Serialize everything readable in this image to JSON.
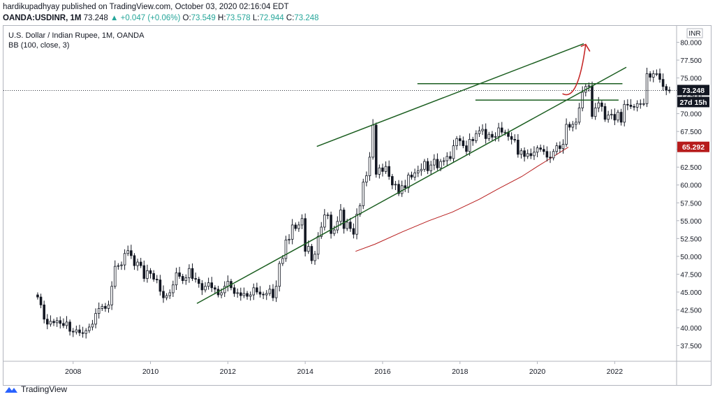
{
  "header": {
    "author": "hardikupadhyay",
    "published_text": "published on TradingView.com, October 03, 2020 02:16:04 EDT",
    "symbol": "OANDA:USDINR, 1M",
    "last": "73.248",
    "change": "▲ +0.047 (+0.06%)",
    "o_label": "O:",
    "o_value": "73.549",
    "h_label": "H:",
    "h_value": "73.578",
    "l_label": "L:",
    "l_value": "72.944",
    "c_label": "C:",
    "c_value": "73.248"
  },
  "legend": {
    "title": "U.S. Dollar / Indian Rupee, 1M, OANDA",
    "indicator": "BB (100, close, 3)"
  },
  "footer": {
    "brand": "TradingView"
  },
  "chart_data": {
    "type": "candlestick",
    "currency": "INR",
    "x_ticks": [
      "2008",
      "2010",
      "2012",
      "2014",
      "2016",
      "2018",
      "2020",
      "2022"
    ],
    "y_ticks": [
      "37.500",
      "40.000",
      "42.500",
      "45.000",
      "47.500",
      "50.000",
      "52.500",
      "55.000",
      "57.500",
      "60.000",
      "62.500",
      "65.000",
      "67.500",
      "70.000",
      "72.500",
      "75.000",
      "77.500",
      "80.000"
    ],
    "ylim": [
      35.3,
      82.3
    ],
    "xlim": [
      2006.2,
      2023.6
    ],
    "last_price_label": "73.248",
    "countdown_label": "27d 15h",
    "bb_value_label": "65.292",
    "colors": {
      "up": "#26a69a",
      "down": "#131722",
      "trend": "#1b5e20",
      "bb": "#b71c1c",
      "arrow": "#c62828",
      "price_badge": "#131722",
      "bb_badge": "#b71c1c"
    },
    "closes": [
      44.3,
      43.2,
      41.2,
      40.5,
      40.9,
      40.7,
      41.0,
      40.6,
      40.3,
      40.8,
      39.5,
      39.4,
      39.7,
      39.3,
      39.2,
      39.6,
      40.1,
      40.5,
      42.0,
      42.7,
      43.0,
      42.7,
      43.2,
      45.8,
      48.6,
      48.7,
      48.8,
      50.4,
      50.8,
      50.1,
      48.7,
      49.2,
      48.7,
      46.9,
      48.0,
      47.6,
      46.8,
      46.7,
      45.1,
      44.2,
      44.5,
      44.9,
      46.0,
      47.7,
      47.2,
      46.6,
      47.0,
      48.3,
      46.9,
      46.8,
      46.2,
      45.3,
      45.8,
      46.3,
      45.6,
      45.4,
      44.6,
      44.9,
      45.8,
      46.5,
      45.6,
      44.8,
      44.9,
      44.5,
      44.8,
      44.4,
      44.6,
      45.6,
      45.0,
      44.7,
      44.6,
      44.8,
      45.4,
      44.2,
      45.8,
      49.0,
      49.7,
      52.3,
      52.4,
      54.4,
      53.9,
      54.4,
      55.3,
      50.7,
      51.4,
      49.4,
      50.3,
      52.8,
      54.1,
      55.8,
      55.8,
      53.2,
      53.7,
      54.9,
      56.5,
      53.9,
      54.8,
      53.9,
      53.1,
      55.9,
      57.1,
      60.4,
      61.3,
      63.9,
      68.4,
      61.5,
      62.4,
      61.9,
      62.6,
      61.2,
      60.0,
      60.1,
      58.8,
      59.9,
      59.6,
      61.4,
      61.1,
      61.7,
      62.0,
      62.2,
      63.3,
      62.0,
      62.8,
      63.6,
      62.4,
      63.3,
      63.4,
      64.0,
      63.7,
      65.5,
      66.5,
      66.2,
      65.5,
      64.7,
      66.4,
      66.2,
      67.2,
      67.6,
      67.8,
      66.5,
      67.1,
      66.7,
      66.8,
      68.0,
      67.4,
      67.4,
      66.8,
      66.4,
      66.3,
      64.3,
      64.8,
      64.0,
      64.4,
      64.1,
      64.6,
      65.2,
      65.0,
      64.7,
      63.9,
      63.8,
      64.7,
      65.5,
      65.1,
      65.7,
      68.5,
      68.1,
      68.5,
      68.8,
      70.8,
      73.0,
      73.8,
      73.9,
      69.6,
      70.8,
      71.5,
      71.0,
      69.2,
      69.8,
      69.9,
      69.1,
      70.2,
      68.8,
      71.3,
      71.2,
      71.0,
      70.9,
      71.4,
      71.4,
      71.4,
      75.6,
      75.1,
      75.6,
      75.6,
      74.8,
      73.8,
      73.3,
      73.2
    ],
    "bb_middle": [
      {
        "x": 2015.3,
        "y": 50.7
      },
      {
        "x": 2015.8,
        "y": 51.7
      },
      {
        "x": 2016.5,
        "y": 53.4
      },
      {
        "x": 2017.2,
        "y": 55.0
      },
      {
        "x": 2017.8,
        "y": 56.2
      },
      {
        "x": 2018.5,
        "y": 58.0
      },
      {
        "x": 2019.0,
        "y": 59.5
      },
      {
        "x": 2019.6,
        "y": 61.2
      },
      {
        "x": 2020.0,
        "y": 62.6
      },
      {
        "x": 2020.3,
        "y": 63.6
      },
      {
        "x": 2020.8,
        "y": 65.3
      }
    ],
    "trendlines": [
      {
        "x1": 2011.2,
        "y1": 43.4,
        "x2": 2022.3,
        "y2": 76.5
      },
      {
        "x1": 2014.3,
        "y1": 65.4,
        "x2": 2021.2,
        "y2": 79.8
      },
      {
        "x1": 2016.9,
        "y1": 74.2,
        "x2": 2022.2,
        "y2": 74.2
      },
      {
        "x1": 2018.4,
        "y1": 71.9,
        "x2": 2022.1,
        "y2": 71.9
      }
    ],
    "arrow": {
      "x1": 2020.65,
      "y1": 72.8,
      "x_mid": 2020.9,
      "y_mid": 72.2,
      "x2": 2021.25,
      "y2": 79.7
    }
  }
}
